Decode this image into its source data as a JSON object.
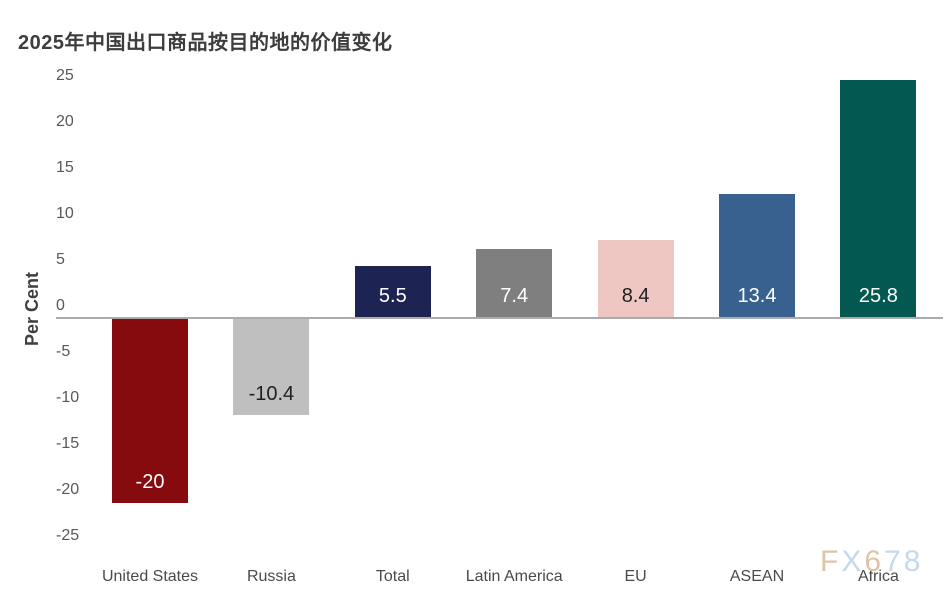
{
  "page": {
    "background": "#ffffff"
  },
  "header": {
    "title": "2025年中国出口商品按目的地的价值变化"
  },
  "watermark": {
    "text": "FX678",
    "letters": [
      {
        "char": "F",
        "color": "#dcc5a7"
      },
      {
        "char": "X",
        "color": "#c3d9ec"
      },
      {
        "char": "6",
        "color": "#dcc5a7"
      },
      {
        "char": "7",
        "color": "#c3d9ec"
      },
      {
        "char": "8",
        "color": "#c3d9ec"
      }
    ]
  },
  "chart_data": {
    "type": "bar",
    "title": "2025年中国出口商品按目的地的价值变化",
    "xlabel": "",
    "ylabel": "Per Cent",
    "categories": [
      "United States",
      "Russia",
      "Total",
      "Latin America",
      "EU",
      "ASEAN",
      "Africa"
    ],
    "values": [
      -20,
      -10.4,
      5.5,
      7.4,
      8.4,
      13.4,
      25.8
    ],
    "data_labels": [
      "-20",
      "-10.4",
      "5.5",
      "7.4",
      "8.4",
      "13.4",
      "25.8"
    ],
    "bar_colors": [
      "#850b0f",
      "#bfbfbf",
      "#1d2453",
      "#7f7f7f",
      "#eec7c2",
      "#38618f",
      "#045852"
    ],
    "label_colors": [
      "#ffffff",
      "#1f1f1f",
      "#ffffff",
      "#ffffff",
      "#1f1f1f",
      "#ffffff",
      "#ffffff"
    ],
    "ylim": [
      -25,
      25
    ],
    "yticks": [
      25,
      20,
      15,
      10,
      5,
      0,
      -5,
      -10,
      -15,
      -20,
      -25
    ],
    "grid": false,
    "legend": false,
    "axis_line_color": "#ababab",
    "tick_label_color": "#595959",
    "category_label_color": "#4a4a4a"
  }
}
